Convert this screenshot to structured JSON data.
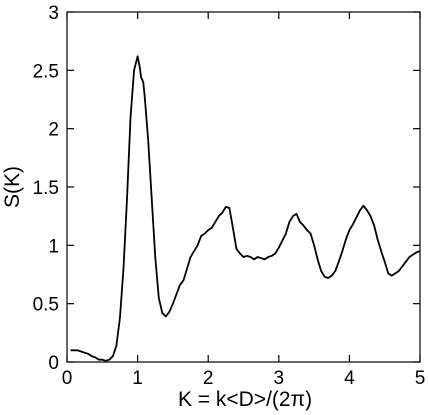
{
  "chart_data": {
    "type": "line",
    "title": "",
    "xlabel": "K = k<D>/(2π)",
    "ylabel": "S(K)",
    "xlim": [
      0,
      5
    ],
    "ylim": [
      0,
      3
    ],
    "grid": false,
    "x_ticks": [
      0,
      1,
      2,
      3,
      4,
      5
    ],
    "x_tick_labels": [
      "0",
      "1",
      "2",
      "3",
      "4",
      "5"
    ],
    "y_ticks": [
      0,
      0.5,
      1,
      1.5,
      2,
      2.5,
      3
    ],
    "y_tick_labels": [
      "0",
      "0.5",
      "1",
      "1.5",
      "2",
      "2.5",
      "3"
    ],
    "series": [
      {
        "color": "#000000",
        "x": [
          0.05,
          0.1,
          0.15,
          0.2,
          0.25,
          0.3,
          0.35,
          0.4,
          0.45,
          0.5,
          0.55,
          0.6,
          0.65,
          0.7,
          0.75,
          0.8,
          0.85,
          0.9,
          0.95,
          1.0,
          1.03,
          1.05,
          1.08,
          1.1,
          1.15,
          1.2,
          1.25,
          1.3,
          1.35,
          1.4,
          1.45,
          1.5,
          1.55,
          1.6,
          1.65,
          1.7,
          1.75,
          1.8,
          1.85,
          1.9,
          1.95,
          2.0,
          2.05,
          2.1,
          2.15,
          2.2,
          2.25,
          2.3,
          2.35,
          2.4,
          2.45,
          2.5,
          2.55,
          2.6,
          2.65,
          2.7,
          2.75,
          2.8,
          2.85,
          2.9,
          2.95,
          3.0,
          3.05,
          3.1,
          3.15,
          3.2,
          3.25,
          3.3,
          3.35,
          3.4,
          3.45,
          3.5,
          3.55,
          3.6,
          3.65,
          3.7,
          3.75,
          3.8,
          3.85,
          3.9,
          3.95,
          4.0,
          4.05,
          4.1,
          4.15,
          4.2,
          4.25,
          4.3,
          4.35,
          4.4,
          4.45,
          4.5,
          4.55,
          4.6,
          4.65,
          4.7,
          4.75,
          4.8,
          4.85,
          4.9,
          4.95,
          5.0
        ],
        "y": [
          0.1,
          0.1,
          0.1,
          0.09,
          0.08,
          0.07,
          0.05,
          0.04,
          0.02,
          0.02,
          0.01,
          0.02,
          0.05,
          0.14,
          0.38,
          0.8,
          1.4,
          2.1,
          2.5,
          2.62,
          2.53,
          2.44,
          2.4,
          2.28,
          1.9,
          1.4,
          0.9,
          0.55,
          0.42,
          0.39,
          0.43,
          0.5,
          0.58,
          0.66,
          0.7,
          0.8,
          0.9,
          0.95,
          1.0,
          1.08,
          1.1,
          1.13,
          1.15,
          1.2,
          1.25,
          1.28,
          1.33,
          1.32,
          1.15,
          0.97,
          0.93,
          0.9,
          0.91,
          0.9,
          0.88,
          0.9,
          0.89,
          0.88,
          0.9,
          0.91,
          0.93,
          0.98,
          1.04,
          1.1,
          1.2,
          1.25,
          1.27,
          1.2,
          1.17,
          1.13,
          1.1,
          1.0,
          0.88,
          0.78,
          0.73,
          0.72,
          0.74,
          0.78,
          0.86,
          0.95,
          1.05,
          1.13,
          1.18,
          1.24,
          1.3,
          1.34,
          1.3,
          1.25,
          1.17,
          1.05,
          0.95,
          0.86,
          0.76,
          0.74,
          0.76,
          0.78,
          0.82,
          0.86,
          0.9,
          0.92,
          0.94,
          0.95
        ]
      }
    ]
  }
}
